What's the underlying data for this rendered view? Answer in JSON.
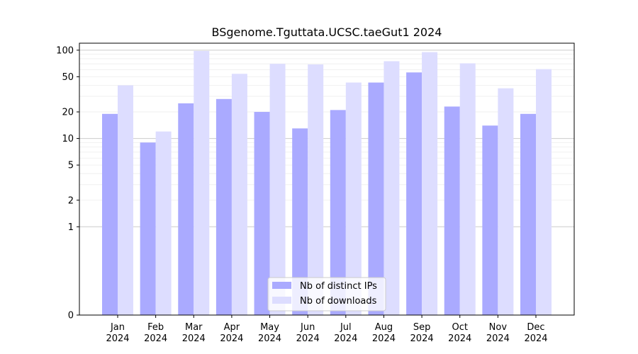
{
  "chart_data": {
    "type": "bar",
    "title": "BSgenome.Tguttata.UCSC.taeGut1 2024",
    "xlabel": "",
    "ylabel": "",
    "y_scale": "symlog",
    "yticks": [
      0,
      1,
      2,
      5,
      10,
      20,
      50,
      100
    ],
    "ylim": [
      0,
      120
    ],
    "grid": true,
    "legend_position": "bottom-center",
    "categories": [
      [
        "Jan",
        "2024"
      ],
      [
        "Feb",
        "2024"
      ],
      [
        "Mar",
        "2024"
      ],
      [
        "Apr",
        "2024"
      ],
      [
        "May",
        "2024"
      ],
      [
        "Jun",
        "2024"
      ],
      [
        "Jul",
        "2024"
      ],
      [
        "Aug",
        "2024"
      ],
      [
        "Sep",
        "2024"
      ],
      [
        "Oct",
        "2024"
      ],
      [
        "Nov",
        "2024"
      ],
      [
        "Dec",
        "2024"
      ]
    ],
    "series": [
      {
        "name": "Nb of distinct IPs",
        "color": "#aaaaff",
        "values": [
          19,
          9,
          25,
          28,
          20,
          13,
          21,
          43,
          56,
          23,
          14,
          19
        ]
      },
      {
        "name": "Nb of downloads",
        "color": "#ddddff",
        "values": [
          40,
          12,
          98,
          54,
          70,
          69,
          43,
          75,
          95,
          71,
          37,
          61
        ]
      }
    ]
  }
}
